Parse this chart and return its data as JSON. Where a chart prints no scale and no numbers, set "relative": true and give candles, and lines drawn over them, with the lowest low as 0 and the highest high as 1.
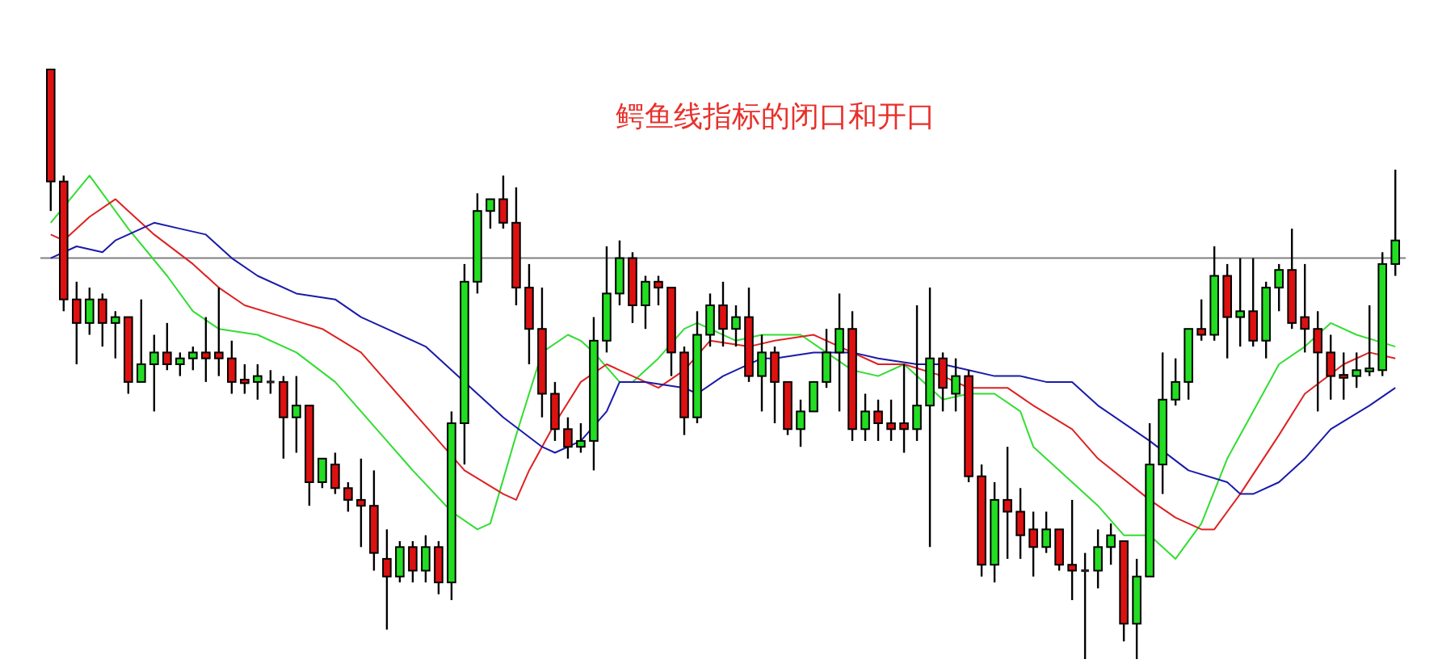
{
  "chart_data": {
    "type": "candlestick",
    "title": "鳄鱼线指标的闭口和开口",
    "relative": true,
    "categories": [
      null,
      null,
      null,
      null,
      null,
      null,
      null,
      null,
      null,
      null,
      null,
      null,
      null,
      null,
      null,
      null,
      null,
      null,
      null,
      null,
      null,
      null,
      null,
      null,
      null,
      null,
      null,
      null,
      null,
      null,
      null,
      null,
      null,
      null,
      null,
      null,
      null,
      null,
      null,
      null,
      null,
      null,
      null,
      null,
      null,
      null,
      null,
      null,
      null,
      null,
      null,
      null,
      null,
      null,
      null,
      null,
      null,
      null,
      null,
      null,
      null,
      null,
      null,
      null,
      null,
      null,
      null,
      null,
      null,
      null,
      null,
      null,
      null,
      null,
      null,
      null,
      null,
      null,
      null,
      null,
      null,
      null,
      null,
      null,
      null,
      null,
      null,
      null,
      null,
      null,
      null,
      null,
      null,
      null,
      null,
      null,
      null,
      null,
      null,
      null,
      null,
      null,
      null,
      null,
      null
    ],
    "ohlc": [
      [
        1.0,
        1.0,
        0.76,
        0.81
      ],
      [
        0.81,
        0.82,
        0.59,
        0.61
      ],
      [
        0.61,
        0.64,
        0.5,
        0.57
      ],
      [
        0.57,
        0.63,
        0.55,
        0.61
      ],
      [
        0.61,
        0.62,
        0.53,
        0.57
      ],
      [
        0.57,
        0.59,
        0.51,
        0.58
      ],
      [
        0.58,
        0.58,
        0.45,
        0.47
      ],
      [
        0.47,
        0.61,
        0.47,
        0.5
      ],
      [
        0.5,
        0.55,
        0.42,
        0.52
      ],
      [
        0.52,
        0.57,
        0.49,
        0.5
      ],
      [
        0.5,
        0.52,
        0.48,
        0.51
      ],
      [
        0.51,
        0.53,
        0.49,
        0.52
      ],
      [
        0.52,
        0.58,
        0.47,
        0.51
      ],
      [
        0.52,
        0.63,
        0.48,
        0.51
      ],
      [
        0.51,
        0.54,
        0.45,
        0.47
      ],
      [
        0.474,
        0.5,
        0.45,
        0.468
      ],
      [
        0.47,
        0.5,
        0.44,
        0.48
      ],
      [
        0.47,
        0.49,
        0.45,
        0.47
      ],
      [
        0.47,
        0.48,
        0.34,
        0.41
      ],
      [
        0.41,
        0.48,
        0.35,
        0.43
      ],
      [
        0.43,
        0.43,
        0.26,
        0.3
      ],
      [
        0.3,
        0.34,
        0.29,
        0.34
      ],
      [
        0.33,
        0.35,
        0.28,
        0.29
      ],
      [
        0.29,
        0.3,
        0.25,
        0.27
      ],
      [
        0.27,
        0.34,
        0.19,
        0.26
      ],
      [
        0.26,
        0.32,
        0.15,
        0.18
      ],
      [
        0.17,
        0.22,
        0.05,
        0.14
      ],
      [
        0.14,
        0.2,
        0.13,
        0.19
      ],
      [
        0.19,
        0.2,
        0.13,
        0.15
      ],
      [
        0.15,
        0.21,
        0.13,
        0.19
      ],
      [
        0.19,
        0.2,
        0.11,
        0.13
      ],
      [
        0.13,
        0.42,
        0.1,
        0.4
      ],
      [
        0.4,
        0.67,
        0.33,
        0.64
      ],
      [
        0.64,
        0.79,
        0.62,
        0.76
      ],
      [
        0.76,
        0.78,
        0.73,
        0.78
      ],
      [
        0.78,
        0.82,
        0.73,
        0.74
      ],
      [
        0.74,
        0.8,
        0.6,
        0.63
      ],
      [
        0.63,
        0.67,
        0.5,
        0.56
      ],
      [
        0.56,
        0.63,
        0.41,
        0.45
      ],
      [
        0.45,
        0.47,
        0.37,
        0.39
      ],
      [
        0.39,
        0.41,
        0.34,
        0.36
      ],
      [
        0.36,
        0.4,
        0.35,
        0.37
      ],
      [
        0.37,
        0.58,
        0.32,
        0.54
      ],
      [
        0.54,
        0.7,
        0.52,
        0.62
      ],
      [
        0.62,
        0.71,
        0.6,
        0.68
      ],
      [
        0.68,
        0.69,
        0.57,
        0.6
      ],
      [
        0.6,
        0.65,
        0.56,
        0.64
      ],
      [
        0.64,
        0.65,
        0.6,
        0.63
      ],
      [
        0.63,
        0.63,
        0.48,
        0.52
      ],
      [
        0.52,
        0.53,
        0.38,
        0.41
      ],
      [
        0.41,
        0.59,
        0.4,
        0.55
      ],
      [
        0.55,
        0.62,
        0.53,
        0.6
      ],
      [
        0.6,
        0.64,
        0.53,
        0.56
      ],
      [
        0.56,
        0.6,
        0.53,
        0.58
      ],
      [
        0.58,
        0.63,
        0.47,
        0.48
      ],
      [
        0.48,
        0.55,
        0.42,
        0.52
      ],
      [
        0.52,
        0.53,
        0.4,
        0.47
      ],
      [
        0.47,
        0.47,
        0.38,
        0.39
      ],
      [
        0.39,
        0.44,
        0.36,
        0.42
      ],
      [
        0.42,
        0.47,
        0.42,
        0.47
      ],
      [
        0.47,
        0.56,
        0.46,
        0.52
      ],
      [
        0.52,
        0.62,
        0.42,
        0.56
      ],
      [
        0.56,
        0.59,
        0.37,
        0.39
      ],
      [
        0.39,
        0.45,
        0.37,
        0.42
      ],
      [
        0.42,
        0.44,
        0.37,
        0.4
      ],
      [
        0.4,
        0.44,
        0.37,
        0.39
      ],
      [
        0.4,
        0.5,
        0.35,
        0.39
      ],
      [
        0.39,
        0.6,
        0.37,
        0.43
      ],
      [
        0.43,
        0.63,
        0.19,
        0.51
      ],
      [
        0.51,
        0.52,
        0.42,
        0.46
      ],
      [
        0.45,
        0.51,
        0.42,
        0.48
      ],
      [
        0.48,
        0.49,
        0.3,
        0.31
      ],
      [
        0.31,
        0.33,
        0.14,
        0.16
      ],
      [
        0.16,
        0.3,
        0.13,
        0.27
      ],
      [
        0.27,
        0.36,
        0.17,
        0.25
      ],
      [
        0.25,
        0.29,
        0.17,
        0.21
      ],
      [
        0.22,
        0.25,
        0.14,
        0.19
      ],
      [
        0.19,
        0.25,
        0.18,
        0.22
      ],
      [
        0.22,
        0.22,
        0.15,
        0.16
      ],
      [
        0.16,
        0.27,
        0.1,
        0.15
      ],
      [
        0.15,
        0.18,
        0.0,
        0.15
      ],
      [
        0.15,
        0.22,
        0.12,
        0.19
      ],
      [
        0.19,
        0.23,
        0.16,
        0.21
      ],
      [
        0.2,
        0.2,
        0.03,
        0.06
      ],
      [
        0.06,
        0.17,
        0.0,
        0.14
      ],
      [
        0.14,
        0.4,
        0.14,
        0.33
      ],
      [
        0.33,
        0.52,
        0.28,
        0.44
      ],
      [
        0.44,
        0.51,
        0.43,
        0.47
      ],
      [
        0.47,
        0.56,
        0.44,
        0.56
      ],
      [
        0.56,
        0.61,
        0.54,
        0.55
      ],
      [
        0.55,
        0.7,
        0.54,
        0.65
      ],
      [
        0.65,
        0.67,
        0.51,
        0.58
      ],
      [
        0.58,
        0.68,
        0.53,
        0.59
      ],
      [
        0.59,
        0.68,
        0.53,
        0.54
      ],
      [
        0.54,
        0.64,
        0.51,
        0.63
      ],
      [
        0.63,
        0.67,
        0.59,
        0.66
      ],
      [
        0.66,
        0.73,
        0.56,
        0.57
      ],
      [
        0.58,
        0.67,
        0.52,
        0.56
      ],
      [
        0.56,
        0.59,
        0.42,
        0.52
      ],
      [
        0.52,
        0.55,
        0.44,
        0.48
      ],
      [
        0.482,
        0.52,
        0.44,
        0.477
      ],
      [
        0.48,
        0.52,
        0.46,
        0.49
      ],
      [
        0.488,
        0.6,
        0.48,
        0.493
      ],
      [
        0.49,
        0.69,
        0.48,
        0.67
      ],
      [
        0.67,
        0.83,
        0.65,
        0.71
      ]
    ],
    "colors": [
      "#dd1111",
      "#dd1111",
      "#dd1111",
      "#22dd22",
      "#dd1111",
      "#22dd22",
      "#dd1111",
      "#22dd22",
      "#22dd22",
      "#dd1111",
      "#22dd22",
      "#22dd22",
      "#dd1111",
      "#dd1111",
      "#dd1111",
      "#dd1111",
      "#22dd22",
      "#222222",
      "#dd1111",
      "#22dd22",
      "#dd1111",
      "#22dd22",
      "#dd1111",
      "#dd1111",
      "#dd1111",
      "#dd1111",
      "#dd1111",
      "#22dd22",
      "#dd1111",
      "#22dd22",
      "#dd1111",
      "#22dd22",
      "#22dd22",
      "#22dd22",
      "#22dd22",
      "#dd1111",
      "#dd1111",
      "#dd1111",
      "#dd1111",
      "#dd1111",
      "#dd1111",
      "#22dd22",
      "#22dd22",
      "#22dd22",
      "#22dd22",
      "#dd1111",
      "#22dd22",
      "#dd1111",
      "#dd1111",
      "#dd1111",
      "#22dd22",
      "#22dd22",
      "#dd1111",
      "#22dd22",
      "#dd1111",
      "#22dd22",
      "#dd1111",
      "#dd1111",
      "#22dd22",
      "#22dd22",
      "#22dd22",
      "#22dd22",
      "#dd1111",
      "#22dd22",
      "#dd1111",
      "#dd1111",
      "#dd1111",
      "#22dd22",
      "#22dd22",
      "#dd1111",
      "#22dd22",
      "#dd1111",
      "#dd1111",
      "#22dd22",
      "#dd1111",
      "#dd1111",
      "#dd1111",
      "#22dd22",
      "#dd1111",
      "#dd1111",
      "#222222",
      "#22dd22",
      "#22dd22",
      "#dd1111",
      "#22dd22",
      "#22dd22",
      "#22dd22",
      "#22dd22",
      "#22dd22",
      "#dd1111",
      "#22dd22",
      "#dd1111",
      "#22dd22",
      "#dd1111",
      "#22dd22",
      "#22dd22",
      "#dd1111",
      "#dd1111",
      "#dd1111",
      "#dd1111",
      "#dd1111",
      "#22dd22",
      "#22dd22",
      "#22dd22",
      "#22dd22"
    ],
    "series": [
      {
        "type": "line",
        "color": "#33dd33",
        "values": [
          0.74,
          null,
          null,
          0.82,
          null,
          null,
          0.73,
          null,
          null,
          0.65,
          null,
          0.59,
          null,
          0.56,
          null,
          null,
          0.55,
          null,
          null,
          0.52,
          null,
          null,
          0.47,
          null,
          null,
          null,
          0.37,
          null,
          0.32,
          null,
          null,
          0.25,
          null,
          0.22,
          0.23,
          null,
          0.38,
          null,
          0.52,
          null,
          0.55,
          0.54,
          0.52,
          null,
          0.47,
          0.47,
          null,
          0.51,
          null,
          0.56,
          0.57,
          null,
          null,
          0.54,
          null,
          0.55,
          0.55,
          null,
          0.55,
          null,
          0.52,
          null,
          0.49,
          null,
          0.48,
          null,
          0.5,
          null,
          null,
          0.44,
          null,
          0.45,
          null,
          0.45,
          null,
          0.42,
          0.36,
          null,
          null,
          0.3,
          null,
          0.26,
          null,
          0.21,
          null,
          0.21,
          null,
          0.17,
          null,
          0.23,
          null,
          0.34,
          null,
          0.42,
          null,
          0.5,
          null,
          0.53,
          null,
          0.57,
          null,
          0.55,
          null,
          null,
          0.53
        ]
      },
      {
        "type": "line",
        "color": "#dd2222",
        "values": [
          0.72,
          0.71,
          null,
          0.75,
          null,
          0.78,
          0.76,
          null,
          0.72,
          null,
          null,
          0.67,
          null,
          0.63,
          null,
          0.6,
          null,
          null,
          0.58,
          null,
          null,
          0.56,
          null,
          null,
          0.52,
          null,
          0.47,
          null,
          0.42,
          null,
          0.37,
          null,
          0.32,
          null,
          null,
          0.28,
          0.27,
          0.32,
          null,
          0.4,
          null,
          0.47,
          null,
          0.5,
          0.49,
          null,
          0.47,
          0.46,
          null,
          0.49,
          null,
          0.54,
          null,
          null,
          0.53,
          null,
          0.54,
          null,
          null,
          0.55,
          null,
          0.53,
          null,
          null,
          0.5,
          null,
          0.5,
          null,
          null,
          0.48,
          null,
          0.46,
          null,
          null,
          0.46,
          null,
          0.43,
          null,
          null,
          0.39,
          null,
          0.34,
          null,
          null,
          null,
          0.27,
          null,
          0.24,
          null,
          0.22,
          0.22,
          null,
          0.28,
          null,
          null,
          0.38,
          null,
          0.45,
          null,
          null,
          0.5,
          null,
          0.52,
          null,
          0.51
        ]
      },
      {
        "type": "line",
        "color": "#1a1aaa",
        "values": [
          0.68,
          null,
          0.7,
          null,
          0.69,
          0.71,
          null,
          null,
          0.74,
          null,
          0.73,
          null,
          0.72,
          null,
          0.68,
          null,
          0.65,
          null,
          null,
          0.62,
          null,
          null,
          0.61,
          null,
          0.58,
          null,
          0.56,
          null,
          null,
          0.53,
          null,
          0.49,
          null,
          0.45,
          null,
          0.41,
          null,
          null,
          0.36,
          0.35,
          null,
          0.37,
          null,
          0.42,
          0.47,
          null,
          0.47,
          null,
          null,
          0.46,
          0.45,
          null,
          0.48,
          null,
          null,
          0.51,
          0.51,
          null,
          null,
          0.52,
          null,
          null,
          0.52,
          null,
          0.51,
          null,
          null,
          0.5,
          null,
          0.5,
          null,
          0.49,
          null,
          0.48,
          null,
          0.48,
          null,
          0.47,
          null,
          0.47,
          null,
          0.43,
          null,
          null,
          null,
          0.37,
          null,
          null,
          0.32,
          null,
          null,
          0.3,
          0.28,
          0.28,
          null,
          0.3,
          null,
          0.34,
          null,
          0.39,
          null,
          null,
          0.43,
          null,
          0.46
        ]
      }
    ],
    "ref_lines": [
      {
        "axis": "y",
        "value": 0.68,
        "color": "#808080"
      }
    ]
  }
}
